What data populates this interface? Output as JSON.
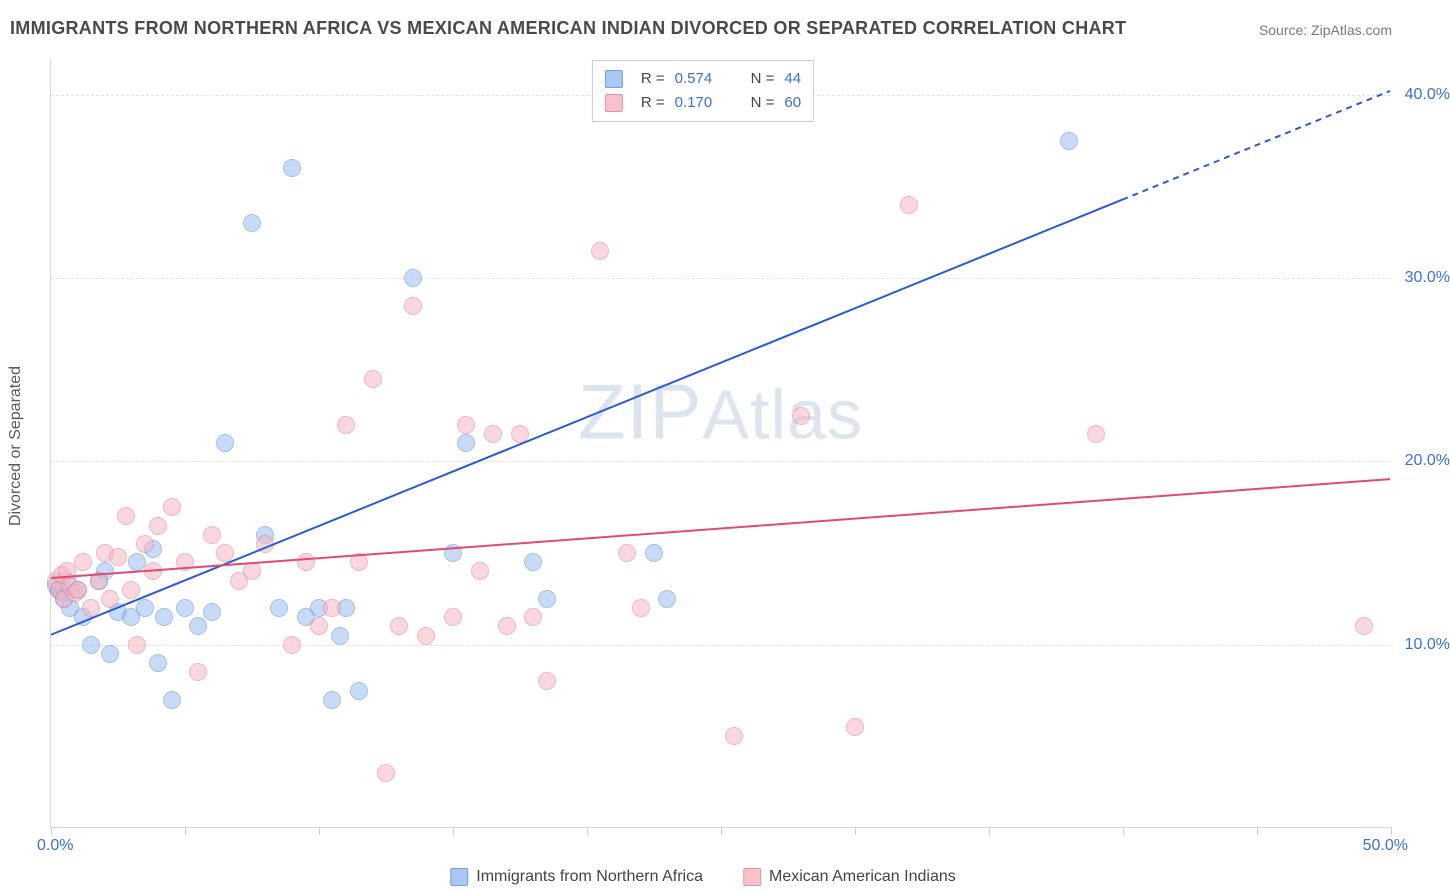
{
  "title": "IMMIGRANTS FROM NORTHERN AFRICA VS MEXICAN AMERICAN INDIAN DIVORCED OR SEPARATED CORRELATION CHART",
  "source": "Source: ZipAtlas.com",
  "watermark": "ZIPAtlas",
  "y_axis_label": "Divorced or Separated",
  "chart": {
    "type": "scatter",
    "xlim": [
      0,
      50
    ],
    "ylim": [
      0,
      42
    ],
    "x_tick_positions": [
      0,
      5,
      10,
      15,
      20,
      25,
      30,
      35,
      40,
      45,
      50
    ],
    "x_origin_label": "0.0%",
    "x_end_label": "50.0%",
    "y_gridlines": [
      10,
      20,
      30,
      40
    ],
    "y_tick_labels": [
      "10.0%",
      "20.0%",
      "30.0%",
      "40.0%"
    ],
    "background_color": "#ffffff",
    "grid_color": "#e2e2e2",
    "axis_color": "#d8d8d8",
    "label_color": "#3b6fd6",
    "marker_radius": 9,
    "series": [
      {
        "name": "Immigrants from Northern Africa",
        "fill": "#9cbef0",
        "stroke": "#5a8fd9",
        "fill_opacity": 0.55,
        "trend": {
          "x1": 0,
          "y1": 10.5,
          "x2": 50,
          "y2": 40.2,
          "solid_to_x": 40,
          "color": "#2a5bd4",
          "width": 2
        },
        "stats": {
          "R": "0.574",
          "N": "44"
        },
        "points": [
          [
            0.2,
            13.2
          ],
          [
            0.3,
            13.0
          ],
          [
            0.4,
            12.8
          ],
          [
            0.5,
            12.5
          ],
          [
            0.6,
            13.5
          ],
          [
            0.7,
            12.0
          ],
          [
            1.0,
            13.0
          ],
          [
            1.2,
            11.5
          ],
          [
            1.5,
            10.0
          ],
          [
            1.8,
            13.5
          ],
          [
            2.0,
            14.0
          ],
          [
            2.2,
            9.5
          ],
          [
            2.5,
            11.8
          ],
          [
            3.0,
            11.5
          ],
          [
            3.2,
            14.5
          ],
          [
            3.5,
            12.0
          ],
          [
            3.8,
            15.2
          ],
          [
            4.0,
            9.0
          ],
          [
            4.2,
            11.5
          ],
          [
            4.5,
            7.0
          ],
          [
            5.0,
            12.0
          ],
          [
            5.5,
            11.0
          ],
          [
            6.0,
            11.8
          ],
          [
            6.5,
            21.0
          ],
          [
            7.5,
            33.0
          ],
          [
            8.0,
            16.0
          ],
          [
            8.5,
            12.0
          ],
          [
            9.0,
            36.0
          ],
          [
            9.5,
            11.5
          ],
          [
            10.0,
            12.0
          ],
          [
            10.5,
            7.0
          ],
          [
            10.8,
            10.5
          ],
          [
            11.0,
            12.0
          ],
          [
            11.5,
            7.5
          ],
          [
            13.5,
            30.0
          ],
          [
            15.0,
            15.0
          ],
          [
            15.5,
            21.0
          ],
          [
            18.0,
            14.5
          ],
          [
            18.5,
            12.5
          ],
          [
            22.5,
            15.0
          ],
          [
            23.0,
            12.5
          ],
          [
            38.0,
            37.5
          ]
        ]
      },
      {
        "name": "Mexican American Indians",
        "fill": "#f4b7c4",
        "stroke": "#e77a94",
        "fill_opacity": 0.55,
        "trend": {
          "x1": 0,
          "y1": 13.6,
          "x2": 50,
          "y2": 19.0,
          "solid_to_x": 50,
          "color": "#e14a72",
          "width": 2
        },
        "stats": {
          "R": "0.170",
          "N": "60"
        },
        "points": [
          [
            0.2,
            13.5
          ],
          [
            0.3,
            13.0
          ],
          [
            0.4,
            13.8
          ],
          [
            0.5,
            12.5
          ],
          [
            0.6,
            14.0
          ],
          [
            0.7,
            13.2
          ],
          [
            0.9,
            12.8
          ],
          [
            1.0,
            13.0
          ],
          [
            1.2,
            14.5
          ],
          [
            1.5,
            12.0
          ],
          [
            1.8,
            13.5
          ],
          [
            2.0,
            15.0
          ],
          [
            2.2,
            12.5
          ],
          [
            2.5,
            14.8
          ],
          [
            2.8,
            17.0
          ],
          [
            3.0,
            13.0
          ],
          [
            3.2,
            10.0
          ],
          [
            3.5,
            15.5
          ],
          [
            3.8,
            14.0
          ],
          [
            4.0,
            16.5
          ],
          [
            4.5,
            17.5
          ],
          [
            5.0,
            14.5
          ],
          [
            5.5,
            8.5
          ],
          [
            6.0,
            16.0
          ],
          [
            6.5,
            15.0
          ],
          [
            7.0,
            13.5
          ],
          [
            7.5,
            14.0
          ],
          [
            8.0,
            15.5
          ],
          [
            9.0,
            10.0
          ],
          [
            9.5,
            14.5
          ],
          [
            10.0,
            11.0
          ],
          [
            10.5,
            12.0
          ],
          [
            11.0,
            22.0
          ],
          [
            11.5,
            14.5
          ],
          [
            12.0,
            24.5
          ],
          [
            12.5,
            3.0
          ],
          [
            13.0,
            11.0
          ],
          [
            13.5,
            28.5
          ],
          [
            14.0,
            10.5
          ],
          [
            15.0,
            11.5
          ],
          [
            15.5,
            22.0
          ],
          [
            16.0,
            14.0
          ],
          [
            16.5,
            21.5
          ],
          [
            17.0,
            11.0
          ],
          [
            17.5,
            21.5
          ],
          [
            18.0,
            11.5
          ],
          [
            18.5,
            8.0
          ],
          [
            20.5,
            31.5
          ],
          [
            21.5,
            15.0
          ],
          [
            22.0,
            12.0
          ],
          [
            25.5,
            5.0
          ],
          [
            28.0,
            22.5
          ],
          [
            30.0,
            5.5
          ],
          [
            32.0,
            34.0
          ],
          [
            39.0,
            21.5
          ],
          [
            49.0,
            11.0
          ]
        ]
      }
    ]
  },
  "legend_bottom": [
    {
      "label": "Immigrants from Northern Africa"
    },
    {
      "label": "Mexican American Indians"
    }
  ],
  "stats_labels": {
    "R": "R =",
    "N": "N ="
  }
}
